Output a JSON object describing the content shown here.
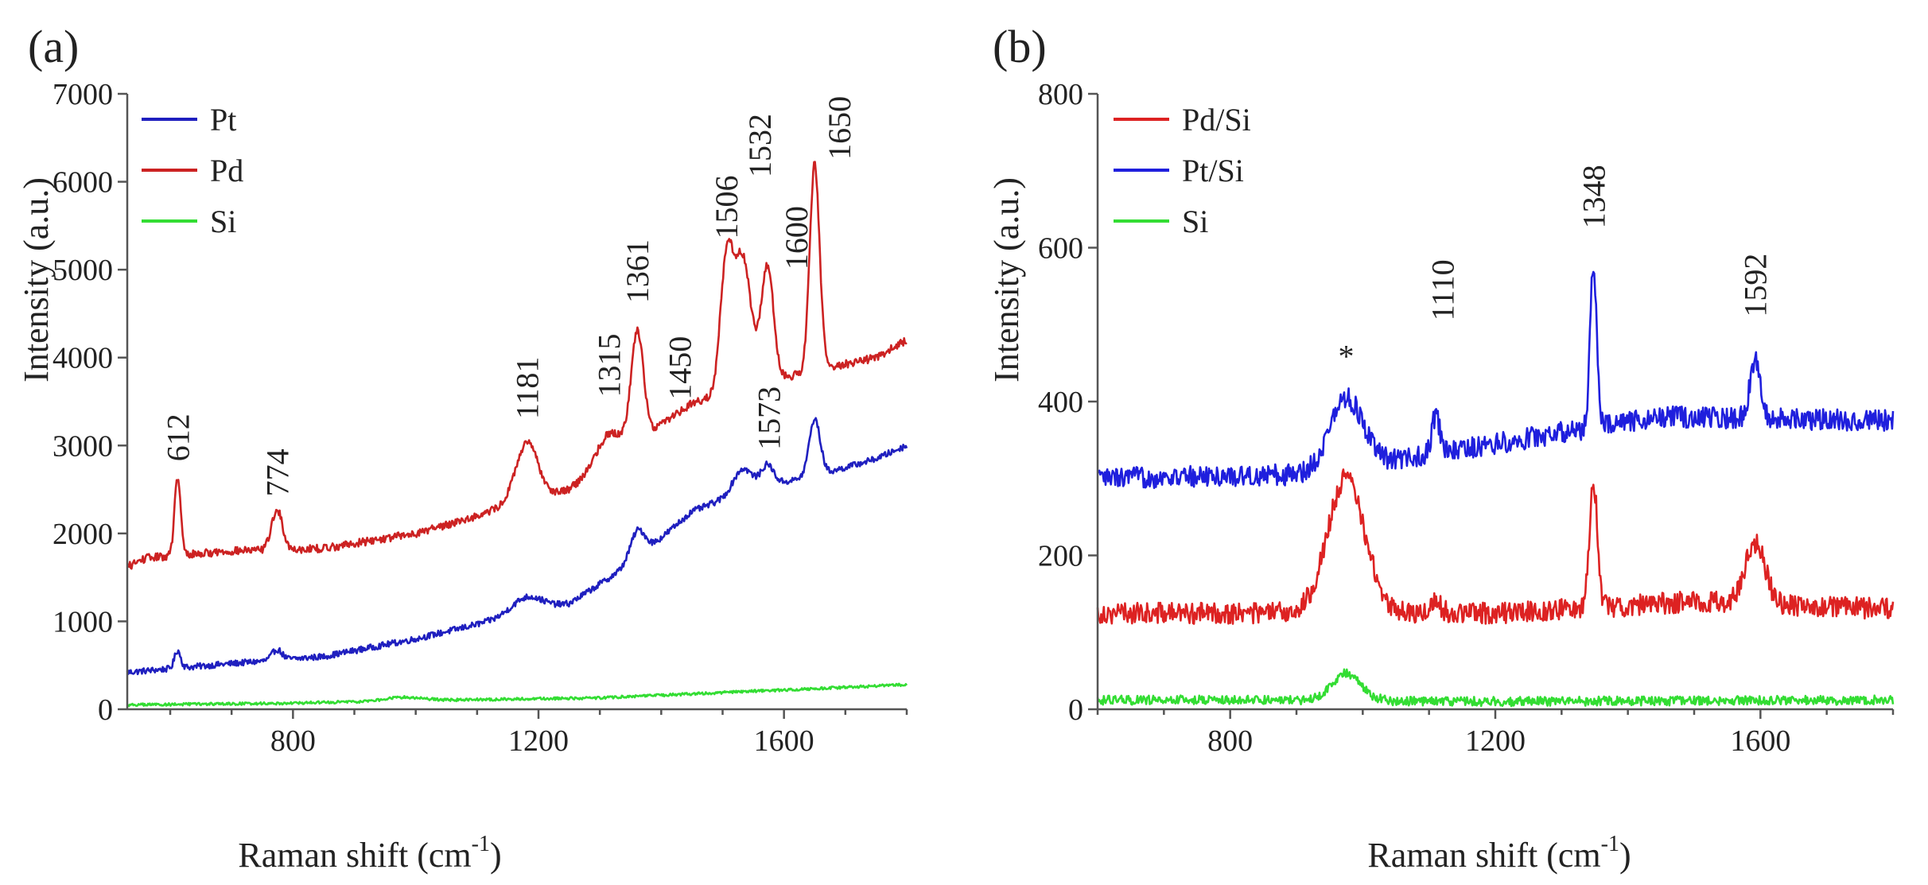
{
  "chart_data": [
    {
      "panel": "(a)",
      "type": "line",
      "xlabel": "Raman shift (cm",
      "xlabel_sup": "-1",
      "xlabel_close": ")",
      "ylabel": "Intensity (a.u.)",
      "xlim": [
        530,
        1800
      ],
      "ylim": [
        0,
        7000
      ],
      "xticks": [
        800,
        1200,
        1600
      ],
      "yticks": [
        0,
        1000,
        2000,
        3000,
        4000,
        5000,
        6000,
        7000
      ],
      "grid": false,
      "legend_position": "top-left",
      "series": [
        {
          "name": "Pt",
          "color": "#1f1fbf",
          "baseline": [
            [
              530,
              420
            ],
            [
              700,
              520
            ],
            [
              850,
              600
            ],
            [
              1000,
              800
            ],
            [
              1150,
              1050
            ],
            [
              1250,
              1200
            ],
            [
              1350,
              1650
            ],
            [
              1450,
              2250
            ],
            [
              1550,
              2520
            ],
            [
              1650,
              2650
            ],
            [
              1750,
              2850
            ],
            [
              1800,
              3000
            ]
          ],
          "peaks": [
            [
              612,
              200,
              5
            ],
            [
              774,
              120,
              8
            ],
            [
              1181,
              180,
              25
            ],
            [
              1361,
              320,
              12
            ],
            [
              1532,
              260,
              15
            ],
            [
              1573,
              230,
              10
            ],
            [
              1650,
              650,
              9
            ]
          ],
          "noise": 35
        },
        {
          "name": "Pd",
          "color": "#cc2222",
          "baseline": [
            [
              530,
              1620
            ],
            [
              560,
              1720
            ],
            [
              700,
              1800
            ],
            [
              850,
              1830
            ],
            [
              1000,
              2000
            ],
            [
              1100,
              2200
            ],
            [
              1150,
              2320
            ],
            [
              1250,
              2500
            ],
            [
              1330,
              2850
            ],
            [
              1400,
              3250
            ],
            [
              1450,
              3480
            ],
            [
              1550,
              3700
            ],
            [
              1650,
              3850
            ],
            [
              1750,
              4000
            ],
            [
              1800,
              4200
            ]
          ],
          "peaks": [
            [
              612,
              880,
              5
            ],
            [
              774,
              450,
              9
            ],
            [
              1181,
              650,
              18
            ],
            [
              1315,
              350,
              22
            ],
            [
              1361,
              1250,
              10
            ],
            [
              1506,
              1400,
              10
            ],
            [
              1532,
              1480,
              14
            ],
            [
              1573,
              1300,
              10
            ],
            [
              1650,
              2350,
              8
            ]
          ],
          "noise": 45
        },
        {
          "name": "Si",
          "color": "#33dd33",
          "baseline": [
            [
              530,
              50
            ],
            [
              800,
              70
            ],
            [
              1000,
              100
            ],
            [
              1300,
              130
            ],
            [
              1600,
              220
            ],
            [
              1800,
              280
            ]
          ],
          "peaks": [
            [
              980,
              40,
              30
            ]
          ],
          "noise": 15
        }
      ],
      "annotations": [
        {
          "text": "612",
          "x": 612,
          "y": 2820
        },
        {
          "text": "774",
          "x": 774,
          "y": 2420
        },
        {
          "text": "1181",
          "x": 1181,
          "y": 3300
        },
        {
          "text": "1315",
          "x": 1315,
          "y": 3550
        },
        {
          "text": "1361",
          "x": 1361,
          "y": 4620
        },
        {
          "text": "1450",
          "x": 1430,
          "y": 3520
        },
        {
          "text": "1506",
          "x": 1506,
          "y": 5350
        },
        {
          "text": "1532",
          "x": 1560,
          "y": 6050
        },
        {
          "text": "1600",
          "x": 1620,
          "y": 5000
        },
        {
          "text": "1573",
          "x": 1575,
          "y": 2950
        },
        {
          "text": "1650",
          "x": 1690,
          "y": 6250
        }
      ]
    },
    {
      "panel": "(b)",
      "type": "line",
      "xlabel": "Raman shift (cm",
      "xlabel_sup": "-1",
      "xlabel_close": ")",
      "ylabel": "Intensity (a.u.)",
      "xlim": [
        600,
        1800
      ],
      "ylim": [
        0,
        800
      ],
      "xticks": [
        800,
        1200,
        1600
      ],
      "yticks": [
        0,
        200,
        400,
        600,
        800
      ],
      "grid": false,
      "legend_position": "top-left",
      "series": [
        {
          "name": "Pd/Si",
          "color": "#dd2222",
          "baseline": [
            [
              600,
              125
            ],
            [
              900,
              125
            ],
            [
              1200,
              125
            ],
            [
              1500,
              140
            ],
            [
              1800,
              130
            ]
          ],
          "peaks": [
            [
              975,
              175,
              28
            ],
            [
              1110,
              15,
              8
            ],
            [
              1348,
              165,
              6
            ],
            [
              1592,
              80,
              15
            ]
          ],
          "noise": 14
        },
        {
          "name": "Pt/Si",
          "color": "#1f1fdd",
          "baseline": [
            [
              600,
              300
            ],
            [
              900,
              305
            ],
            [
              1100,
              330
            ],
            [
              1300,
              360
            ],
            [
              1450,
              380
            ],
            [
              1800,
              375
            ]
          ],
          "peaks": [
            [
              975,
              90,
              25
            ],
            [
              1110,
              50,
              6
            ],
            [
              1348,
              210,
              5
            ],
            [
              1592,
              75,
              8
            ]
          ],
          "noise": 14
        },
        {
          "name": "Si",
          "color": "#33dd33",
          "baseline": [
            [
              600,
              12
            ],
            [
              900,
              12
            ],
            [
              1200,
              10
            ],
            [
              1800,
              12
            ]
          ],
          "peaks": [
            [
              975,
              35,
              22
            ]
          ],
          "noise": 6
        }
      ],
      "annotations": [
        {
          "text": "*",
          "x": 975,
          "y": 445
        },
        {
          "text": "1110",
          "x": 1120,
          "y": 505
        },
        {
          "text": "1348",
          "x": 1348,
          "y": 625
        },
        {
          "text": "1592",
          "x": 1592,
          "y": 510
        }
      ]
    }
  ]
}
